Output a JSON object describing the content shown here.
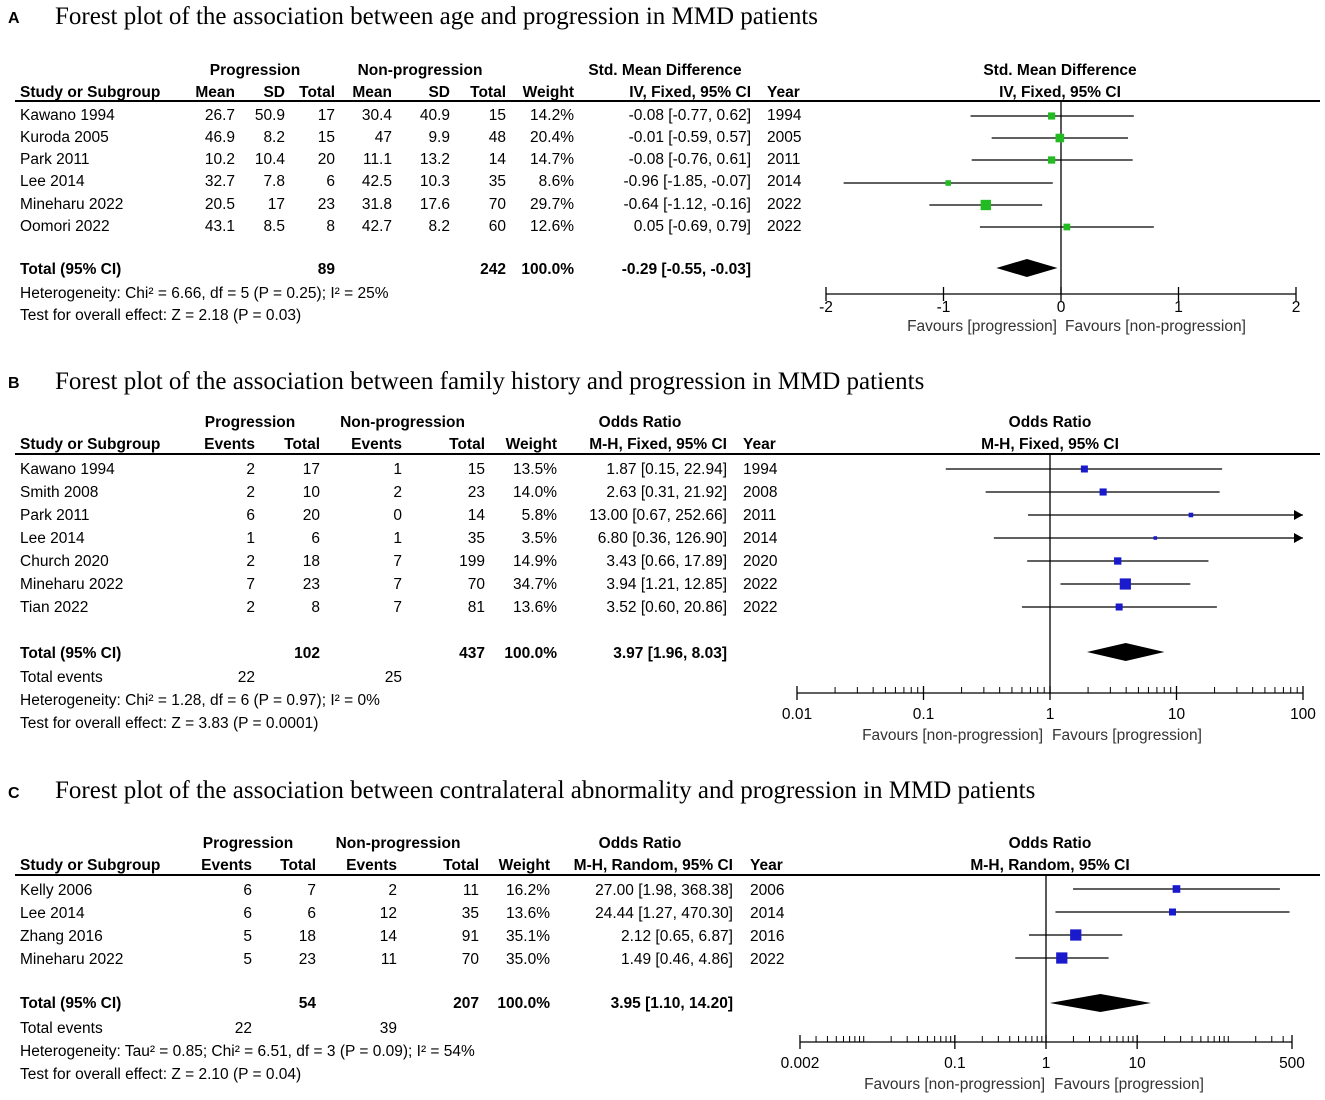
{
  "chart_data": [
    {
      "panel": "A",
      "type": "forest",
      "title": "Forest plot of the association between age and progression in MMD patients",
      "group1": "Progression",
      "group2": "Non-progression",
      "col_headers": [
        "Study or Subgroup",
        "Mean",
        "SD",
        "Total",
        "Mean",
        "SD",
        "Total",
        "Weight",
        "IV, Fixed, 95% CI",
        "Year"
      ],
      "effect_label": "Std. Mean Difference",
      "method": "IV, Fixed, 95% CI",
      "scale": "linear",
      "axis_range": [
        -2,
        2
      ],
      "ticks": [
        -2,
        -1,
        0,
        1,
        2
      ],
      "tick_labels": [
        "-2",
        "-1",
        "0",
        "1",
        "2"
      ],
      "favours_left": "Favours [progression]",
      "favours_right": "Favours [non-progression]",
      "studies": [
        {
          "name": "Kawano 1994",
          "cols": [
            "26.7",
            "50.9",
            "17",
            "30.4",
            "40.9",
            "15"
          ],
          "weight": "14.2%",
          "ci_text": "-0.08 [-0.77, 0.62]",
          "year": "1994",
          "est": -0.08,
          "lo": -0.77,
          "hi": 0.62,
          "w": 14.2
        },
        {
          "name": "Kuroda 2005",
          "cols": [
            "46.9",
            "8.2",
            "15",
            "47",
            "9.9",
            "48"
          ],
          "weight": "20.4%",
          "ci_text": "-0.01 [-0.59, 0.57]",
          "year": "2005",
          "est": -0.01,
          "lo": -0.59,
          "hi": 0.57,
          "w": 20.4
        },
        {
          "name": "Park 2011",
          "cols": [
            "10.2",
            "10.4",
            "20",
            "11.1",
            "13.2",
            "14"
          ],
          "weight": "14.7%",
          "ci_text": "-0.08 [-0.76, 0.61]",
          "year": "2011",
          "est": -0.08,
          "lo": -0.76,
          "hi": 0.61,
          "w": 14.7
        },
        {
          "name": "Lee 2014",
          "cols": [
            "32.7",
            "7.8",
            "6",
            "42.5",
            "10.3",
            "35"
          ],
          "weight": "8.6%",
          "ci_text": "-0.96 [-1.85, -0.07]",
          "year": "2014",
          "est": -0.96,
          "lo": -1.85,
          "hi": -0.07,
          "w": 8.6
        },
        {
          "name": "Mineharu 2022",
          "cols": [
            "20.5",
            "17",
            "23",
            "31.8",
            "17.6",
            "70"
          ],
          "weight": "29.7%",
          "ci_text": "-0.64 [-1.12, -0.16]",
          "year": "2022",
          "est": -0.64,
          "lo": -1.12,
          "hi": -0.16,
          "w": 29.7
        },
        {
          "name": "Oomori 2022",
          "cols": [
            "43.1",
            "8.5",
            "8",
            "42.7",
            "8.2",
            "60"
          ],
          "weight": "12.6%",
          "ci_text": "0.05 [-0.69, 0.79]",
          "year": "2022",
          "est": 0.05,
          "lo": -0.69,
          "hi": 0.79,
          "w": 12.6
        }
      ],
      "total": {
        "label": "Total (95% CI)",
        "n1": "89",
        "n2": "242",
        "weight": "100.0%",
        "ci_text": "-0.29 [-0.55, -0.03]",
        "est": -0.29,
        "lo": -0.55,
        "hi": -0.03
      },
      "total_events": null,
      "heterogeneity": "Heterogeneity: Chi² = 6.66, df = 5 (P = 0.25); I² = 25%",
      "overall_effect": "Test for overall effect: Z = 2.18 (P = 0.03)"
    },
    {
      "panel": "B",
      "type": "forest",
      "title": "Forest plot of the association between family history and progression in MMD patients",
      "group1": "Progression",
      "group2": "Non-progression",
      "col_headers": [
        "Study or Subgroup",
        "Events",
        "Total",
        "Events",
        "Total",
        "Weight",
        "M-H, Fixed, 95% CI",
        "Year"
      ],
      "effect_label": "Odds Ratio",
      "method": "M-H, Fixed, 95% CI",
      "scale": "log",
      "axis_range": [
        0.01,
        100
      ],
      "ticks": [
        0.01,
        0.1,
        1,
        10,
        100
      ],
      "tick_labels": [
        "0.01",
        "0.1",
        "1",
        "10",
        "100"
      ],
      "favours_left": "Favours [non-progression]",
      "favours_right": "Favours [progression]",
      "studies": [
        {
          "name": "Kawano 1994",
          "cols": [
            "2",
            "17",
            "1",
            "15"
          ],
          "weight": "13.5%",
          "ci_text": "1.87 [0.15, 22.94]",
          "year": "1994",
          "est": 1.87,
          "lo": 0.15,
          "hi": 22.94,
          "w": 13.5
        },
        {
          "name": "Smith 2008",
          "cols": [
            "2",
            "10",
            "2",
            "23"
          ],
          "weight": "14.0%",
          "ci_text": "2.63 [0.31, 21.92]",
          "year": "2008",
          "est": 2.63,
          "lo": 0.31,
          "hi": 21.92,
          "w": 14.0
        },
        {
          "name": "Park 2011",
          "cols": [
            "6",
            "20",
            "0",
            "14"
          ],
          "weight": "5.8%",
          "ci_text": "13.00 [0.67, 252.66]",
          "year": "2011",
          "est": 13.0,
          "lo": 0.67,
          "hi": 252.66,
          "w": 5.8
        },
        {
          "name": "Lee 2014",
          "cols": [
            "1",
            "6",
            "1",
            "35"
          ],
          "weight": "3.5%",
          "ci_text": "6.80 [0.36, 126.90]",
          "year": "2014",
          "est": 6.8,
          "lo": 0.36,
          "hi": 126.9,
          "w": 3.5
        },
        {
          "name": "Church 2020",
          "cols": [
            "2",
            "18",
            "7",
            "199"
          ],
          "weight": "14.9%",
          "ci_text": "3.43 [0.66, 17.89]",
          "year": "2020",
          "est": 3.43,
          "lo": 0.66,
          "hi": 17.89,
          "w": 14.9
        },
        {
          "name": "Mineharu 2022",
          "cols": [
            "7",
            "23",
            "7",
            "70"
          ],
          "weight": "34.7%",
          "ci_text": "3.94 [1.21, 12.85]",
          "year": "2022",
          "est": 3.94,
          "lo": 1.21,
          "hi": 12.85,
          "w": 34.7
        },
        {
          "name": "Tian 2022",
          "cols": [
            "2",
            "8",
            "7",
            "81"
          ],
          "weight": "13.6%",
          "ci_text": "3.52 [0.60, 20.86]",
          "year": "2022",
          "est": 3.52,
          "lo": 0.6,
          "hi": 20.86,
          "w": 13.6
        }
      ],
      "total": {
        "label": "Total (95% CI)",
        "n1": "102",
        "n2": "437",
        "weight": "100.0%",
        "ci_text": "3.97 [1.96, 8.03]",
        "est": 3.97,
        "lo": 1.96,
        "hi": 8.03
      },
      "total_events": {
        "label": "Total events",
        "e1": "22",
        "e2": "25"
      },
      "heterogeneity": "Heterogeneity: Chi² = 1.28, df = 6 (P = 0.97); I² = 0%",
      "overall_effect": "Test for overall effect: Z = 3.83 (P = 0.0001)"
    },
    {
      "panel": "C",
      "type": "forest",
      "title": "Forest plot of the association between contralateral abnormality and progression in MMD patients",
      "group1": "Progression",
      "group2": "Non-progression",
      "col_headers": [
        "Study or Subgroup",
        "Events",
        "Total",
        "Events",
        "Total",
        "Weight",
        "M-H, Random, 95% CI",
        "Year"
      ],
      "effect_label": "Odds Ratio",
      "method": "M-H, Random, 95% CI",
      "scale": "log",
      "axis_range": [
        0.002,
        500
      ],
      "ticks": [
        0.002,
        0.1,
        1,
        10,
        500
      ],
      "tick_labels": [
        "0.002",
        "0.1",
        "1",
        "10",
        "500"
      ],
      "favours_left": "Favours [non-progression]",
      "favours_right": "Favours [progression]",
      "studies": [
        {
          "name": "Kelly 2006",
          "cols": [
            "6",
            "7",
            "2",
            "11"
          ],
          "weight": "16.2%",
          "ci_text": "27.00 [1.98, 368.38]",
          "year": "2006",
          "est": 27.0,
          "lo": 1.98,
          "hi": 368.38,
          "w": 16.2
        },
        {
          "name": "Lee 2014",
          "cols": [
            "6",
            "6",
            "12",
            "35"
          ],
          "weight": "13.6%",
          "ci_text": "24.44 [1.27, 470.30]",
          "year": "2014",
          "est": 24.44,
          "lo": 1.27,
          "hi": 470.3,
          "w": 13.6
        },
        {
          "name": "Zhang 2016",
          "cols": [
            "5",
            "18",
            "14",
            "91"
          ],
          "weight": "35.1%",
          "ci_text": "2.12 [0.65, 6.87]",
          "year": "2016",
          "est": 2.12,
          "lo": 0.65,
          "hi": 6.87,
          "w": 35.1
        },
        {
          "name": "Mineharu 2022",
          "cols": [
            "5",
            "23",
            "11",
            "70"
          ],
          "weight": "35.0%",
          "ci_text": "1.49 [0.46, 4.86]",
          "year": "2022",
          "est": 1.49,
          "lo": 0.46,
          "hi": 4.86,
          "w": 35.0
        }
      ],
      "total": {
        "label": "Total (95% CI)",
        "n1": "54",
        "n2": "207",
        "weight": "100.0%",
        "ci_text": "3.95 [1.10, 14.20]",
        "est": 3.95,
        "lo": 1.1,
        "hi": 14.2
      },
      "total_events": {
        "label": "Total events",
        "e1": "22",
        "e2": "39"
      },
      "heterogeneity": "Heterogeneity: Tau² = 0.85; Chi² = 6.51, df = 3 (P = 0.09); I² = 54%",
      "overall_effect": "Test for overall effect: Z = 2.10 (P = 0.04)"
    }
  ],
  "colors": {
    "A": "#22bb22",
    "B": "#1a1acc",
    "C": "#1a1acc",
    "diamond": "#000000"
  }
}
